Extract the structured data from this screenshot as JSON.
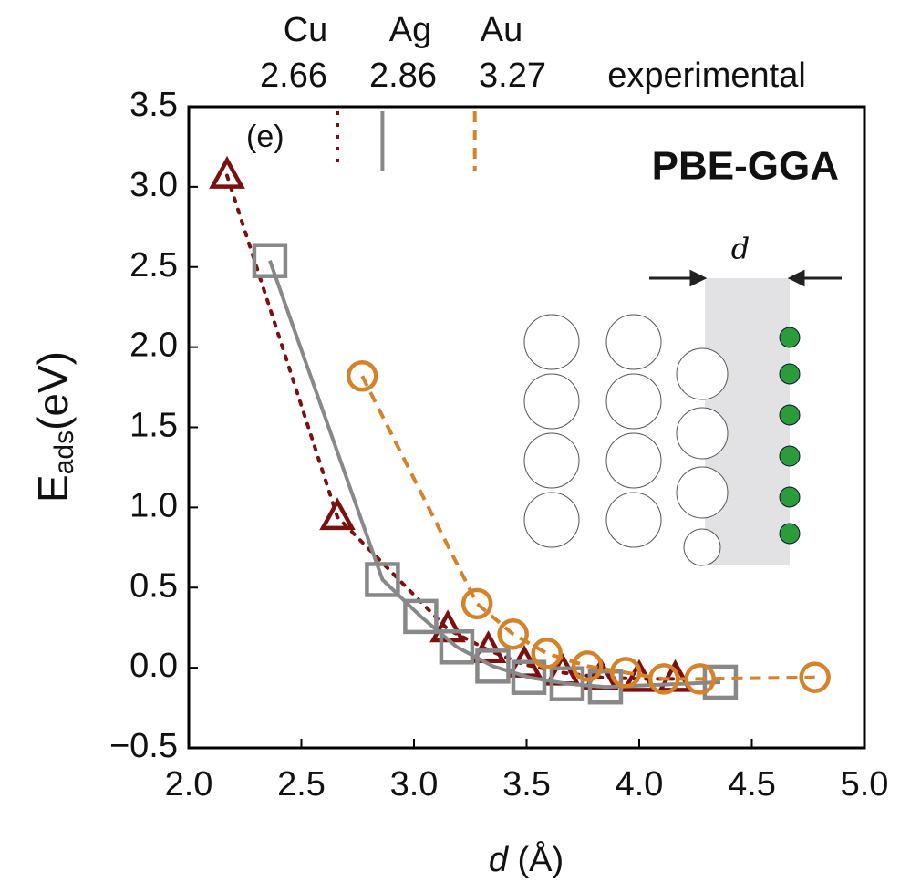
{
  "chart_data": {
    "type": "line",
    "xlabel_var": "d",
    "xlabel_unit": "(Å)",
    "ylabel_main": "E",
    "ylabel_sub": "ads",
    "ylabel_unit": "(eV)",
    "annotation": "(e)",
    "method_label": "PBE-GGA",
    "method_color": "#ee0000",
    "inset_label": "d",
    "experimental_label": "experimental",
    "experimental": [
      {
        "name": "Cu",
        "value": 2.66,
        "color": "#7a1010",
        "style": "dotted"
      },
      {
        "name": "Ag",
        "value": 2.86,
        "color": "#888888",
        "style": "solid"
      },
      {
        "name": "Au",
        "value": 3.27,
        "color": "#d4832a",
        "style": "dashed"
      }
    ],
    "xlim": [
      2.0,
      5.0
    ],
    "xticks": [
      {
        "value": 2,
        "label": "2.0"
      },
      2.5,
      {
        "value": 3,
        "label": "3.0"
      },
      3.5,
      {
        "value": 4,
        "label": "4.0"
      },
      4.5,
      {
        "value": 5,
        "label": "5.0"
      }
    ],
    "ylim": [
      -0.5,
      3.5
    ],
    "yticks": [
      {
        "value": -0.5,
        "label": "−0.5"
      },
      {
        "value": 0,
        "label": "0.0"
      },
      0.5,
      {
        "value": 1,
        "label": "1.0"
      },
      1.5,
      {
        "value": 2,
        "label": "2.0"
      },
      2.5,
      {
        "value": 3,
        "label": "3.0"
      },
      3.5
    ],
    "series": [
      {
        "marker": "triangle",
        "color": "#7a1010",
        "style": "dotted",
        "x": [
          2.17,
          2.66,
          3.15,
          3.33,
          3.49,
          3.66,
          3.83,
          4.0,
          4.16
        ],
        "values": [
          3.07,
          0.94,
          0.24,
          0.11,
          0.02,
          -0.03,
          -0.06,
          -0.07,
          -0.07
        ]
      },
      {
        "marker": "square",
        "color": "#888888",
        "style": "solid",
        "x": [
          2.36,
          2.86,
          3.03,
          3.19,
          3.35,
          3.51,
          3.68,
          3.85,
          4.36
        ],
        "values": [
          2.54,
          0.55,
          0.32,
          0.13,
          0.01,
          -0.06,
          -0.1,
          -0.12,
          -0.09
        ]
      },
      {
        "marker": "circle",
        "color": "#d4832a",
        "style": "dashed",
        "x": [
          2.77,
          3.28,
          3.44,
          3.59,
          3.77,
          3.94,
          4.11,
          4.27,
          4.78
        ],
        "values": [
          1.82,
          0.4,
          0.21,
          0.09,
          0.01,
          -0.03,
          -0.07,
          -0.07,
          -0.06
        ]
      }
    ]
  }
}
